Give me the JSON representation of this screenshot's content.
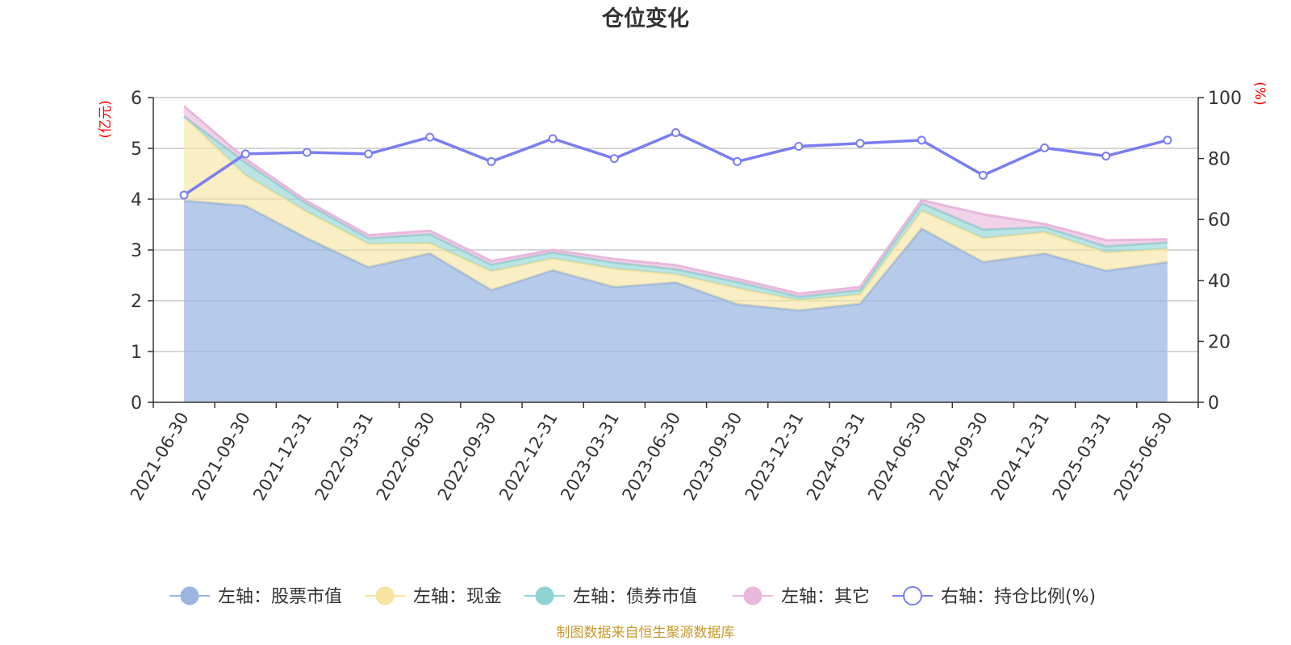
{
  "chart_data": {
    "type": "area",
    "title": "仓位变化",
    "left_unit": "(亿元)",
    "right_unit": "(%)",
    "source": "制图数据来自恒生聚源数据库",
    "x": [
      "2021-06-30",
      "2021-09-30",
      "2021-12-31",
      "2022-03-31",
      "2022-06-30",
      "2022-09-30",
      "2022-12-31",
      "2023-03-31",
      "2023-06-30",
      "2023-09-30",
      "2023-12-31",
      "2024-03-31",
      "2024-06-30",
      "2024-09-30",
      "2024-12-31",
      "2025-03-31",
      "2025-06-30"
    ],
    "left_axis": {
      "min": 0,
      "max": 6,
      "ticks": [
        "0",
        "1",
        "2",
        "3",
        "4",
        "5",
        "6"
      ]
    },
    "right_axis": {
      "min": 0,
      "max": 100,
      "ticks": [
        "0",
        "20",
        "40",
        "60",
        "80",
        "100"
      ]
    },
    "stacked_series": [
      {
        "name": "左轴：股票市值",
        "color": "#9ab6e0",
        "values": [
          3.97,
          3.87,
          3.23,
          2.66,
          2.93,
          2.21,
          2.6,
          2.27,
          2.36,
          1.93,
          1.81,
          1.94,
          3.42,
          2.76,
          2.93,
          2.59,
          2.76
        ]
      },
      {
        "name": "左轴：现金",
        "color": "#f7e4a0",
        "values": [
          1.66,
          0.6,
          0.52,
          0.46,
          0.2,
          0.37,
          0.23,
          0.36,
          0.16,
          0.32,
          0.2,
          0.18,
          0.35,
          0.47,
          0.42,
          0.36,
          0.26
        ]
      },
      {
        "name": "左轴：债券市值",
        "color": "#8fd3d3",
        "values": [
          0.0,
          0.25,
          0.16,
          0.11,
          0.18,
          0.13,
          0.12,
          0.12,
          0.1,
          0.12,
          0.07,
          0.09,
          0.15,
          0.17,
          0.1,
          0.12,
          0.13
        ]
      },
      {
        "name": "左轴：其它",
        "color": "#e8b8dc",
        "values": [
          0.2,
          0.07,
          0.05,
          0.06,
          0.07,
          0.07,
          0.05,
          0.07,
          0.08,
          0.06,
          0.06,
          0.06,
          0.06,
          0.3,
          0.06,
          0.12,
          0.06
        ]
      }
    ],
    "line_series": {
      "name": "右轴：持仓比例(%)",
      "color": "#7a7ef0",
      "values": [
        68.0,
        81.5,
        82.0,
        81.5,
        87.0,
        79.0,
        86.5,
        80.0,
        88.5,
        79.0,
        84.0,
        85.0,
        86.0,
        74.5,
        83.5,
        80.8,
        86.0
      ]
    },
    "grid": true,
    "legend_position": "bottom"
  }
}
